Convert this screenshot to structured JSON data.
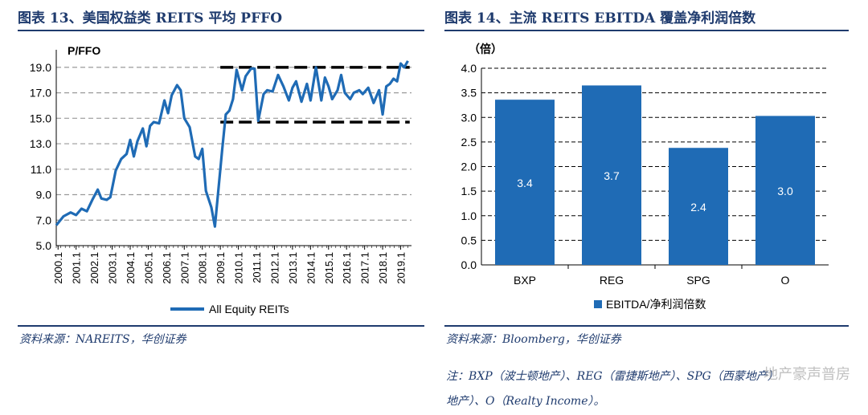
{
  "left_panel": {
    "title": "图表 13、美国权益类 REITS 平均 PFFO",
    "source": "资料来源：NAREITS，华创证券"
  },
  "right_panel": {
    "title": "图表 14、主流 REITS EBITDA 覆盖净利润倍数",
    "source": "资料来源：Bloomberg，华创证券",
    "note_line1": "注：BXP（波士顿地产）、REG（雷捷斯地产）、SPG（西蒙地产）",
    "note_line2": "地产）、O（Realty Income）。"
  },
  "watermark": "地产豪声普房",
  "chart_data": [
    {
      "type": "line",
      "title": "",
      "ylabel": "P/FFO",
      "xlabel": "",
      "ylim": [
        5.0,
        20.0
      ],
      "yticks": [
        "5.0",
        "7.0",
        "9.0",
        "11.0",
        "13.0",
        "15.0",
        "17.0",
        "19.0"
      ],
      "xticks": [
        "2000.1",
        "2001.1",
        "2002.1",
        "2003.1",
        "2004.1",
        "2005.1",
        "2006.1",
        "2007.1",
        "2008.1",
        "2009.1",
        "2010.1",
        "2011.1",
        "2012.1",
        "2013.1",
        "2014.1",
        "2015.1",
        "2016.1",
        "2017.1",
        "2018.1",
        "2019.1"
      ],
      "grid": "horizontal dashed",
      "legend": "bottom",
      "line_color": "#1f6bb5",
      "reference_lines": [
        {
          "y": 19.0,
          "from": 2009.1,
          "to": 2019.6,
          "style": "dashed black"
        },
        {
          "y": 14.7,
          "from": 2009.1,
          "to": 2019.6,
          "style": "dashed black"
        }
      ],
      "series": [
        {
          "name": "All Equity REITs",
          "x": [
            2000.0,
            2000.4,
            2000.8,
            2001.1,
            2001.4,
            2001.7,
            2002.0,
            2002.3,
            2002.5,
            2002.8,
            2003.0,
            2003.3,
            2003.6,
            2003.9,
            2004.1,
            2004.3,
            2004.5,
            2004.8,
            2005.0,
            2005.2,
            2005.4,
            2005.7,
            2006.0,
            2006.2,
            2006.4,
            2006.7,
            2006.9,
            2007.1,
            2007.4,
            2007.7,
            2007.9,
            2008.1,
            2008.3,
            2008.6,
            2008.8,
            2009.0,
            2009.2,
            2009.4,
            2009.6,
            2009.8,
            2010.0,
            2010.3,
            2010.5,
            2010.8,
            2011.0,
            2011.2,
            2011.5,
            2011.7,
            2012.0,
            2012.3,
            2012.6,
            2012.9,
            2013.1,
            2013.3,
            2013.6,
            2013.9,
            2014.1,
            2014.4,
            2014.7,
            2014.9,
            2015.1,
            2015.3,
            2015.6,
            2015.8,
            2016.0,
            2016.3,
            2016.5,
            2016.8,
            2017.0,
            2017.3,
            2017.6,
            2017.9,
            2018.1,
            2018.3,
            2018.5,
            2018.7,
            2018.9,
            2019.1,
            2019.3,
            2019.5
          ],
          "values": [
            6.6,
            7.3,
            7.6,
            7.4,
            7.9,
            7.7,
            8.6,
            9.4,
            8.7,
            8.6,
            8.8,
            10.9,
            11.8,
            12.2,
            13.3,
            12.0,
            13.2,
            14.2,
            12.8,
            14.4,
            14.7,
            14.6,
            16.4,
            15.4,
            16.8,
            17.6,
            17.2,
            15.0,
            14.3,
            12.0,
            11.8,
            12.6,
            9.3,
            8.0,
            6.5,
            9.5,
            12.5,
            15.3,
            15.6,
            16.5,
            18.8,
            17.2,
            18.3,
            18.9,
            18.9,
            14.8,
            16.9,
            17.2,
            17.1,
            18.4,
            17.5,
            16.4,
            17.4,
            17.9,
            16.3,
            17.7,
            16.4,
            19.0,
            16.4,
            18.2,
            17.5,
            16.5,
            17.2,
            18.4,
            17.0,
            16.5,
            17.0,
            17.2,
            16.9,
            17.4,
            16.2,
            17.2,
            15.3,
            17.5,
            17.7,
            18.1,
            17.9,
            19.3,
            19.0,
            19.5
          ]
        }
      ]
    },
    {
      "type": "bar",
      "title": "",
      "ylabel": "（倍）",
      "xlabel": "",
      "ylim": [
        0.0,
        4.0
      ],
      "yticks": [
        "0.0",
        "0.5",
        "1.0",
        "1.5",
        "2.0",
        "2.5",
        "3.0",
        "3.5",
        "4.0"
      ],
      "grid": "horizontal dashed",
      "legend": "bottom",
      "bar_color": "#1f6bb5",
      "categories": [
        "BXP",
        "REG",
        "SPG",
        "O"
      ],
      "series": [
        {
          "name": "EBITDA/净利润倍数",
          "values": [
            3.36,
            3.65,
            2.38,
            3.03
          ],
          "labels": [
            "3.4",
            "3.7",
            "2.4",
            "3.0"
          ]
        }
      ]
    }
  ]
}
